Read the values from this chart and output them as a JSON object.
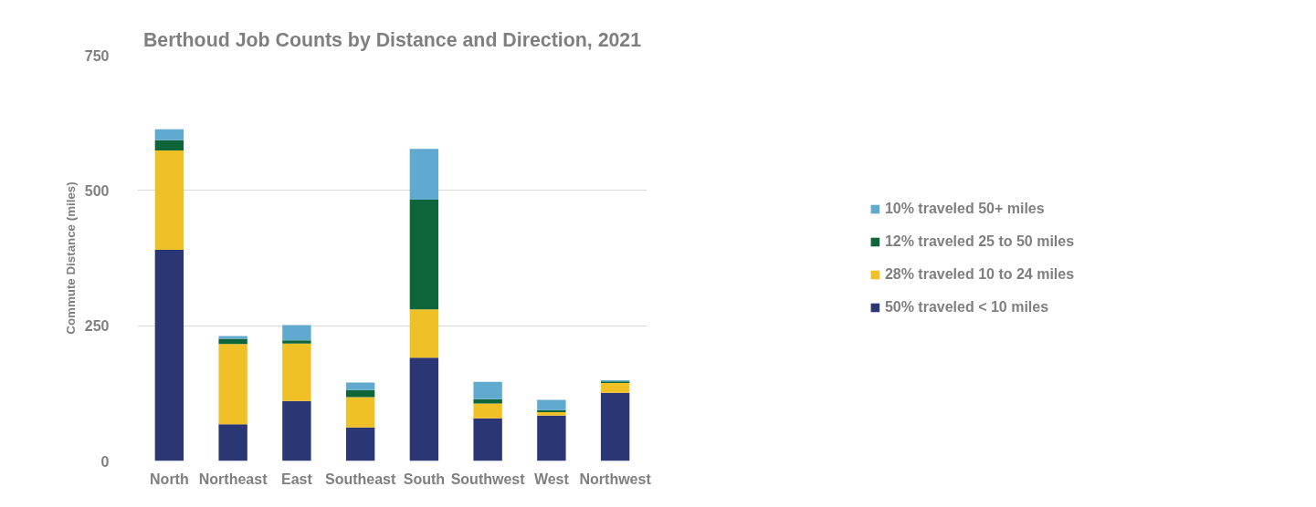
{
  "chart_data": {
    "type": "bar",
    "title": "Berthoud Job Counts by Distance and Direction, 2021",
    "ylabel": "Commute Distance (miles)",
    "categories": [
      "North",
      "Northeast",
      "East",
      "Southeast",
      "South",
      "Southwest",
      "West",
      "Northwest"
    ],
    "stacked": true,
    "ylim": [
      0,
      750
    ],
    "yticks": [
      0,
      250,
      500,
      750
    ],
    "grid": "y",
    "legend": "right",
    "series": [
      {
        "name": "50% traveled < 10 miles",
        "color": "#2b3674",
        "values": [
          390,
          68,
          111,
          62,
          191,
          79,
          84,
          126
        ]
      },
      {
        "name": "28% traveled 10 to 24 miles",
        "color": "#f0c027",
        "values": [
          184,
          148,
          106,
          56,
          89,
          27,
          6,
          18
        ]
      },
      {
        "name": "12% traveled 25 to 50 miles",
        "color": "#0e653a",
        "values": [
          19,
          10,
          6,
          13,
          203,
          8,
          4,
          3
        ]
      },
      {
        "name": "10% traveled 50+ miles",
        "color": "#61aacf",
        "values": [
          20,
          5,
          28,
          14,
          94,
          32,
          19,
          2
        ]
      }
    ]
  }
}
